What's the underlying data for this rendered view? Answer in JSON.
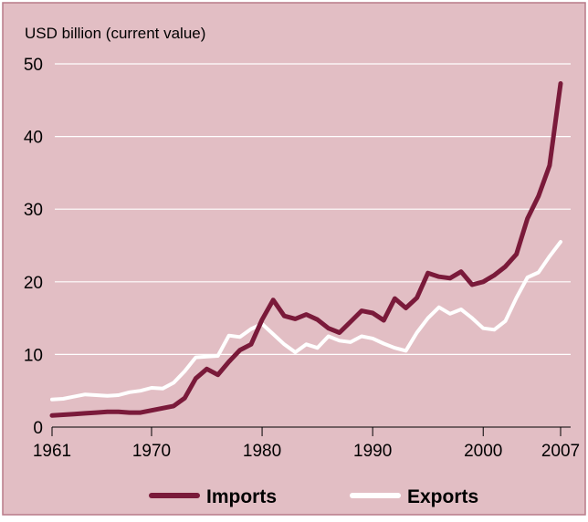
{
  "chart_data": {
    "type": "line",
    "ylabel": "USD billion (current value)",
    "ylim": [
      0,
      50
    ],
    "xlim": [
      1961,
      2007
    ],
    "y_ticks": [
      0,
      10,
      20,
      30,
      40,
      50
    ],
    "x_ticks": [
      1961,
      1970,
      1980,
      1990,
      2000,
      2007
    ],
    "grid": "horizontal",
    "legend_position": "bottom",
    "x": [
      1961,
      1962,
      1963,
      1964,
      1965,
      1966,
      1967,
      1968,
      1969,
      1970,
      1971,
      1972,
      1973,
      1974,
      1975,
      1976,
      1977,
      1978,
      1979,
      1980,
      1981,
      1982,
      1983,
      1984,
      1985,
      1986,
      1987,
      1988,
      1989,
      1990,
      1991,
      1992,
      1993,
      1994,
      1995,
      1996,
      1997,
      1998,
      1999,
      2000,
      2001,
      2002,
      2003,
      2004,
      2005,
      2006,
      2007
    ],
    "series": [
      {
        "name": "Imports",
        "color": "#7a1a3a",
        "values": [
          1.6,
          1.7,
          1.8,
          1.9,
          2.0,
          2.1,
          2.1,
          2.0,
          2.0,
          2.3,
          2.6,
          2.9,
          4.0,
          6.7,
          8.0,
          7.2,
          9.0,
          10.6,
          11.4,
          14.8,
          17.5,
          15.3,
          14.9,
          15.5,
          14.8,
          13.6,
          13.0,
          14.5,
          16.0,
          15.7,
          14.7,
          17.7,
          16.4,
          17.8,
          21.2,
          20.7,
          20.5,
          21.4,
          19.6,
          20.0,
          20.9,
          22.1,
          23.8,
          28.7,
          31.8,
          36.0,
          47.3
        ]
      },
      {
        "name": "Exports",
        "color": "#ffffff",
        "values": [
          3.8,
          3.9,
          4.2,
          4.5,
          4.4,
          4.3,
          4.4,
          4.8,
          5.0,
          5.4,
          5.3,
          6.1,
          7.7,
          9.6,
          9.7,
          9.8,
          12.6,
          12.4,
          13.5,
          14.2,
          12.8,
          11.4,
          10.3,
          11.4,
          10.9,
          12.5,
          11.9,
          11.7,
          12.5,
          12.2,
          11.5,
          10.9,
          10.5,
          13.0,
          15.0,
          16.5,
          15.6,
          16.2,
          15.0,
          13.6,
          13.4,
          14.6,
          17.8,
          20.6,
          21.3,
          23.5,
          25.5
        ]
      }
    ]
  }
}
